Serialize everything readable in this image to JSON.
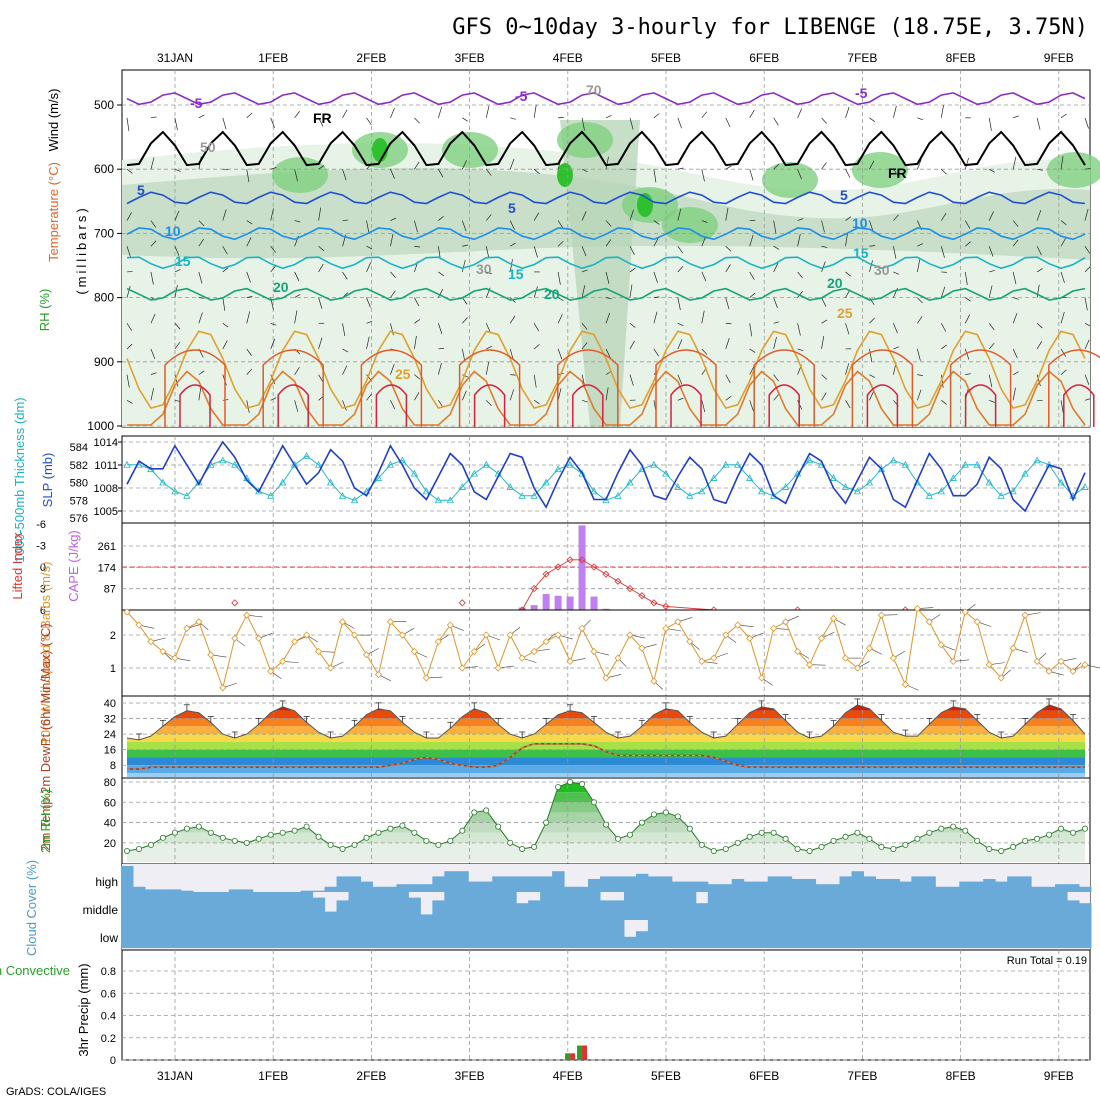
{
  "chart_data": {
    "type": "meteogram",
    "title": "GFS 0~10day 3-hourly for LIBENGE (18.75E, 3.75N)",
    "credit": "GrADS: COLA/IGES",
    "date_labels": [
      "31JAN",
      "1FEB",
      "2FEB",
      "3FEB",
      "4FEB",
      "5FEB",
      "6FEB",
      "7FEB",
      "8FEB",
      "9FEB"
    ],
    "time_steps": 81,
    "panels": {
      "upper_air": {
        "ylabel": "(millibars)",
        "legend_labels": [
          "Wind (m/s)",
          "Temperature (°C)",
          "RH (%)"
        ],
        "pressure_ticks": [
          500,
          600,
          700,
          800,
          900,
          1000
        ],
        "ylim": [
          1000,
          450
        ],
        "contour_labels": [
          "-5",
          "-5",
          "-5",
          "FR",
          "FR",
          "5",
          "5",
          "5",
          "10",
          "10",
          "15",
          "15",
          "15",
          "20",
          "20",
          "20",
          "25",
          "25",
          "30",
          "30",
          "50",
          "70"
        ],
        "isotherms": [
          {
            "label": "-5",
            "level_mb": 490,
            "color": "#8a2bc8"
          },
          {
            "label": "0 (FR)",
            "level_mb": 570,
            "color": "#000000"
          },
          {
            "label": "5",
            "level_mb": 645,
            "color": "#1f4fd1"
          },
          {
            "label": "10",
            "level_mb": 700,
            "color": "#1e8fe8"
          },
          {
            "label": "15",
            "level_mb": 745,
            "color": "#19b4c4"
          },
          {
            "label": "20",
            "level_mb": 795,
            "color": "#16a37a"
          },
          {
            "label": "25",
            "level_mb": 850,
            "color": "#e0a030"
          },
          {
            "label": "30",
            "level_mb": 915,
            "color": "#e07a2c"
          }
        ]
      },
      "pressure_thickness": {
        "ylabel_left": "1000-500mb Thickness (dm)",
        "ylabel_right": "SLP (mb)",
        "thickness_ticks": [
          576,
          578,
          580,
          582,
          584
        ],
        "slp_ticks": [
          1005,
          1008,
          1011,
          1014
        ],
        "slp_mb": [
          1008.5,
          1011.5,
          1010.5,
          1010.5,
          1013.5,
          1011,
          1008.5,
          1011.5,
          1014,
          1012,
          1009,
          1007.5,
          1010.5,
          1013.5,
          1011,
          1008.5,
          1010,
          1013,
          1011.5,
          1008,
          1007,
          1010,
          1013.5,
          1011,
          1008,
          1006.5,
          1009.5,
          1012.5,
          1011,
          1007.5,
          1006.5,
          1009.5,
          1012.5,
          1012,
          1008,
          1005.5,
          1009,
          1012,
          1010,
          1006.5,
          1006.5,
          1010,
          1013,
          1011,
          1007,
          1006.5,
          1009.5,
          1012,
          1010.5,
          1006.5,
          1006,
          1009.5,
          1012.5,
          1011,
          1007,
          1006,
          1009.5,
          1012.5,
          1011.5,
          1008,
          1006,
          1009,
          1012,
          1010.5,
          1006.5,
          1005.5,
          1009,
          1012.5,
          1010.5,
          1007,
          1007,
          1008.5,
          1012,
          1010.5,
          1006.5,
          1005,
          1008,
          1011,
          1010.5,
          1006.5,
          1010
        ],
        "thickness_dm": [
          582,
          582,
          581.5,
          580,
          579,
          578.5,
          580,
          582,
          582.5,
          582,
          580.5,
          579,
          578.5,
          580,
          582,
          583,
          582,
          580,
          578.5,
          578,
          579,
          580.5,
          582,
          582.5,
          581,
          579,
          578,
          578,
          579.5,
          581,
          582,
          581,
          579.5,
          578.5,
          578.5,
          580,
          581.5,
          582,
          581,
          579,
          578,
          578.5,
          580,
          581.5,
          582,
          581,
          579.5,
          578.5,
          579,
          580.5,
          582,
          582,
          580.5,
          579,
          578.5,
          579.5,
          581,
          582.5,
          582,
          580.5,
          579.5,
          579,
          580,
          581.5,
          582.5,
          582,
          580,
          578.5,
          579,
          580.5,
          582,
          582,
          580,
          578.5,
          579,
          581,
          582.5,
          582,
          580,
          578.5,
          579.5
        ]
      },
      "cape_li": {
        "ylabel_left": "Lifted Index",
        "ylabel_right": "CAPE (J/kg)",
        "li_ticks": [
          -6,
          -3,
          0,
          3,
          6
        ],
        "cape_ticks": [
          87,
          174,
          261
        ],
        "cape_bars": [
          {
            "step": 33,
            "value": 10
          },
          {
            "step": 34,
            "value": 20
          },
          {
            "step": 35,
            "value": 65
          },
          {
            "step": 36,
            "value": 58
          },
          {
            "step": 37,
            "value": 55
          },
          {
            "step": 38,
            "value": 345
          },
          {
            "step": 39,
            "value": 55
          },
          {
            "step": 40,
            "value": 5
          }
        ],
        "lifted_index": [
          {
            "step": 9,
            "value": 5
          },
          {
            "step": 28,
            "value": 5
          },
          {
            "step": 33,
            "value": 6
          },
          {
            "step": 34,
            "value": 3
          },
          {
            "step": 35,
            "value": 1
          },
          {
            "step": 36,
            "value": 0
          },
          {
            "step": 37,
            "value": -1
          },
          {
            "step": 38,
            "value": -1
          },
          {
            "step": 39,
            "value": 0
          },
          {
            "step": 40,
            "value": 1
          },
          {
            "step": 41,
            "value": 2
          },
          {
            "step": 42,
            "value": 3
          },
          {
            "step": 43,
            "value": 4
          },
          {
            "step": 44,
            "value": 5
          },
          {
            "step": 45,
            "value": 5.5
          },
          {
            "step": 49,
            "value": 6
          },
          {
            "step": 56,
            "value": 6
          },
          {
            "step": 65,
            "value": 6
          }
        ]
      },
      "wind10m": {
        "ylabel": "10m Wind Speed & Barbs (m/s)",
        "speed_ticks": [
          1,
          2
        ],
        "speed_ms": [
          2.7,
          2.3,
          1.8,
          1.5,
          1.3,
          2.2,
          2.4,
          1.4,
          0.4,
          1.9,
          2.6,
          1.9,
          0.9,
          1.2,
          1.8,
          2.0,
          1.5,
          1.0,
          2.4,
          2.0,
          1.4,
          0.8,
          2.4,
          2.0,
          1.5,
          0.7,
          1.8,
          2.3,
          1.0,
          1.5,
          2.0,
          1.0,
          2.0,
          1.3,
          1.5,
          1.8,
          2.0,
          1.2,
          2.2,
          1.5,
          0.7,
          1.3,
          2.0,
          1.6,
          0.6,
          2.2,
          2.4,
          1.8,
          1.2,
          1.3,
          2.0,
          2.3,
          1.9,
          0.7,
          2.2,
          2.4,
          1.5,
          1.1,
          1.9,
          2.5,
          1.3,
          1.0,
          1.6,
          2.6,
          1.3,
          0.5,
          2.8,
          2.4,
          1.7,
          1.2,
          2.7,
          2.4,
          1.1,
          0.7,
          1.6,
          2.6,
          1.2,
          0.9,
          1.2,
          0.9,
          1.1
        ]
      },
      "temperature": {
        "ylabel": "2m Temp 2m DewPt (6hr Min/Max) (°C)",
        "temp_ticks": [
          8,
          16,
          24,
          32,
          40
        ],
        "temp_c": [
          22,
          21,
          23,
          28,
          33,
          36,
          35,
          30,
          24,
          22,
          24,
          29,
          35,
          38,
          36,
          30,
          25,
          22,
          23,
          28,
          34,
          37,
          36,
          30,
          25,
          22,
          22,
          27,
          33,
          37,
          35,
          29,
          24,
          22,
          24,
          29,
          34,
          36,
          35,
          30,
          25,
          22,
          23,
          28,
          34,
          37,
          36,
          30,
          25,
          22,
          23,
          29,
          35,
          38,
          37,
          31,
          25,
          22,
          23,
          28,
          35,
          39,
          37,
          31,
          25,
          23,
          23,
          29,
          35,
          38,
          37,
          31,
          25,
          22,
          23,
          29,
          35,
          39,
          37,
          31,
          24
        ],
        "dewpoint_c": [
          6,
          6,
          7,
          7,
          7,
          7,
          7,
          7,
          7,
          7,
          7,
          7,
          7,
          7,
          7,
          7,
          7,
          7,
          7,
          7,
          7,
          7,
          8,
          9,
          11,
          12,
          11,
          9,
          8,
          7,
          7,
          8,
          12,
          17,
          19,
          19,
          19,
          19,
          19,
          18,
          15,
          13,
          13,
          13,
          13,
          13,
          13,
          13,
          13,
          12,
          10,
          8,
          7,
          7,
          7,
          7,
          7,
          7,
          7,
          7,
          7,
          7,
          7,
          7,
          7,
          7,
          7,
          7,
          7,
          7,
          7,
          7,
          7,
          7,
          7,
          7,
          7,
          7,
          7,
          7,
          7
        ]
      },
      "rh": {
        "ylabel": "2m RH (%)",
        "rh_ticks": [
          20,
          40,
          60,
          80
        ],
        "rh_pct": [
          12,
          14,
          18,
          25,
          30,
          34,
          36,
          30,
          25,
          22,
          20,
          24,
          28,
          30,
          32,
          36,
          26,
          18,
          14,
          18,
          25,
          30,
          34,
          37,
          30,
          22,
          18,
          22,
          32,
          50,
          52,
          36,
          20,
          14,
          16,
          40,
          75,
          80,
          78,
          60,
          38,
          24,
          28,
          40,
          48,
          50,
          46,
          34,
          18,
          12,
          14,
          20,
          26,
          30,
          30,
          24,
          14,
          12,
          16,
          22,
          26,
          30,
          24,
          16,
          14,
          18,
          24,
          30,
          34,
          36,
          32,
          22,
          14,
          12,
          16,
          22,
          24,
          28,
          34,
          30,
          34
        ]
      },
      "clouds": {
        "ylabel": "Cloud Cover (%)",
        "layer_labels": [
          "high",
          "middle",
          "low"
        ],
        "high_pct": [
          100,
          20,
          10,
          10,
          10,
          5,
          0,
          0,
          0,
          10,
          10,
          0,
          0,
          0,
          0,
          5,
          5,
          20,
          60,
          60,
          40,
          20,
          20,
          30,
          30,
          30,
          60,
          80,
          80,
          40,
          40,
          60,
          60,
          60,
          60,
          60,
          80,
          20,
          20,
          50,
          60,
          60,
          60,
          70,
          60,
          60,
          40,
          40,
          40,
          30,
          30,
          50,
          40,
          40,
          60,
          60,
          50,
          50,
          30,
          30,
          60,
          80,
          60,
          50,
          50,
          40,
          60,
          60,
          20,
          20,
          40,
          40,
          50,
          40,
          60,
          60,
          20,
          20,
          30,
          30,
          20
        ],
        "middle_pct": [
          0,
          0,
          0,
          0,
          0,
          0,
          0,
          0,
          0,
          0,
          0,
          0,
          0,
          0,
          0,
          0,
          20,
          70,
          30,
          0,
          0,
          0,
          0,
          0,
          20,
          80,
          30,
          0,
          0,
          0,
          0,
          0,
          0,
          40,
          30,
          0,
          0,
          0,
          0,
          0,
          30,
          30,
          0,
          0,
          0,
          0,
          0,
          0,
          40,
          0,
          0,
          0,
          0,
          0,
          0,
          0,
          0,
          0,
          0,
          0,
          0,
          0,
          0,
          0,
          0,
          0,
          0,
          0,
          0,
          0,
          0,
          0,
          0,
          0,
          0,
          0,
          0,
          0,
          0,
          30,
          40
        ],
        "low_pct": [
          0,
          0,
          0,
          0,
          0,
          0,
          0,
          0,
          0,
          0,
          0,
          0,
          0,
          0,
          0,
          0,
          0,
          0,
          0,
          0,
          0,
          0,
          0,
          0,
          0,
          0,
          0,
          0,
          0,
          0,
          0,
          0,
          0,
          0,
          0,
          0,
          0,
          0,
          0,
          0,
          0,
          0,
          60,
          40,
          0,
          0,
          0,
          0,
          0,
          0,
          0,
          0,
          0,
          0,
          0,
          0,
          0,
          0,
          0,
          0,
          0,
          0,
          0,
          0,
          0,
          0,
          0,
          0,
          0,
          0,
          0,
          0,
          0,
          0,
          0,
          0,
          0,
          0,
          0,
          0,
          0
        ]
      },
      "precip": {
        "ylabel_left": "Total / Rain Convective",
        "ylabel_right": "3hr Precip (mm)",
        "precip_ticks": [
          0,
          0.2,
          0.4,
          0.6,
          0.8
        ],
        "run_total_label": "Run Total = 0.19",
        "bars": [
          {
            "step": 37,
            "total": 0.06,
            "convective": 0.06
          },
          {
            "step": 38,
            "total": 0.13,
            "convective": 0.13
          }
        ]
      }
    }
  }
}
